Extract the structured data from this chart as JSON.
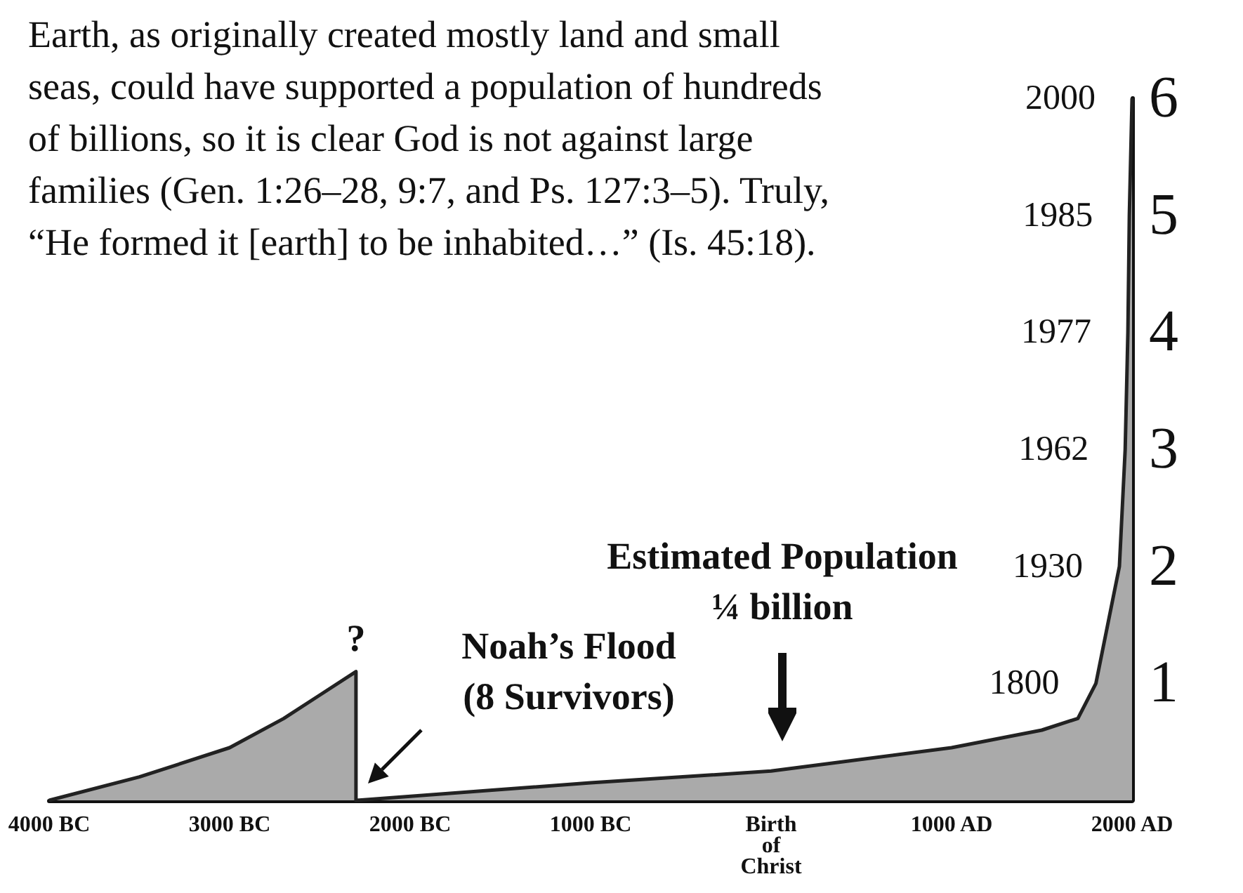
{
  "chart_data": {
    "type": "area",
    "x": [
      -4000,
      -3500,
      -3000,
      -2700,
      -2500,
      -2300,
      -2300,
      -1000,
      0,
      1000,
      1500,
      1700,
      1800,
      1930,
      1962,
      1977,
      1985,
      2000
    ],
    "series": [
      {
        "color": "#aaaaaa",
        "values": [
          0,
          0.2,
          0.45,
          0.7,
          0.9,
          1.1,
          0,
          0.15,
          0.25,
          0.45,
          0.6,
          0.7,
          1,
          2,
          3,
          4,
          5,
          6
        ]
      }
    ],
    "xlim": [
      -4000,
      2000
    ],
    "xticks": [
      {
        "value": -4000,
        "label": "4000 BC"
      },
      {
        "value": -3000,
        "label": "3000 BC"
      },
      {
        "value": -2000,
        "label": "2000 BC"
      },
      {
        "value": -1000,
        "label": "1000 BC"
      },
      {
        "value": 0,
        "label": "Birth\nof\nChrist"
      },
      {
        "value": 1000,
        "label": "1000 AD"
      },
      {
        "value": 2000,
        "label": "2000 AD"
      }
    ],
    "ylim": [
      0,
      6
    ],
    "yticks": [
      1,
      2,
      3,
      4,
      5,
      6
    ],
    "marker": "none",
    "grid": false,
    "annotations": [
      "Earth, as originally created mostly land and small\nseas, could have supported a population of hundreds\nof billions, so it is clear God is not against large\nfamilies (Gen. 1:26–28, 9:7, and Ps. 127:3–5). Truly,\n“He formed it [earth] to be inhabited…” (Is. 45:18).",
      {
        "text": "?",
        "x": -2300,
        "y": 1.1
      },
      "Noah’s Flood\n(8 Survivors)",
      "Estimated Population\n¼ billion",
      {
        "text": "1800",
        "x": 1800,
        "y": 1
      },
      {
        "text": "1930",
        "x": 1930,
        "y": 2
      },
      {
        "text": "1962",
        "x": 1962,
        "y": 3
      },
      {
        "text": "1977",
        "x": 1977,
        "y": 4
      },
      {
        "text": "1985",
        "x": 1985,
        "y": 5
      },
      {
        "text": "2000",
        "x": 2000,
        "y": 6
      }
    ]
  }
}
